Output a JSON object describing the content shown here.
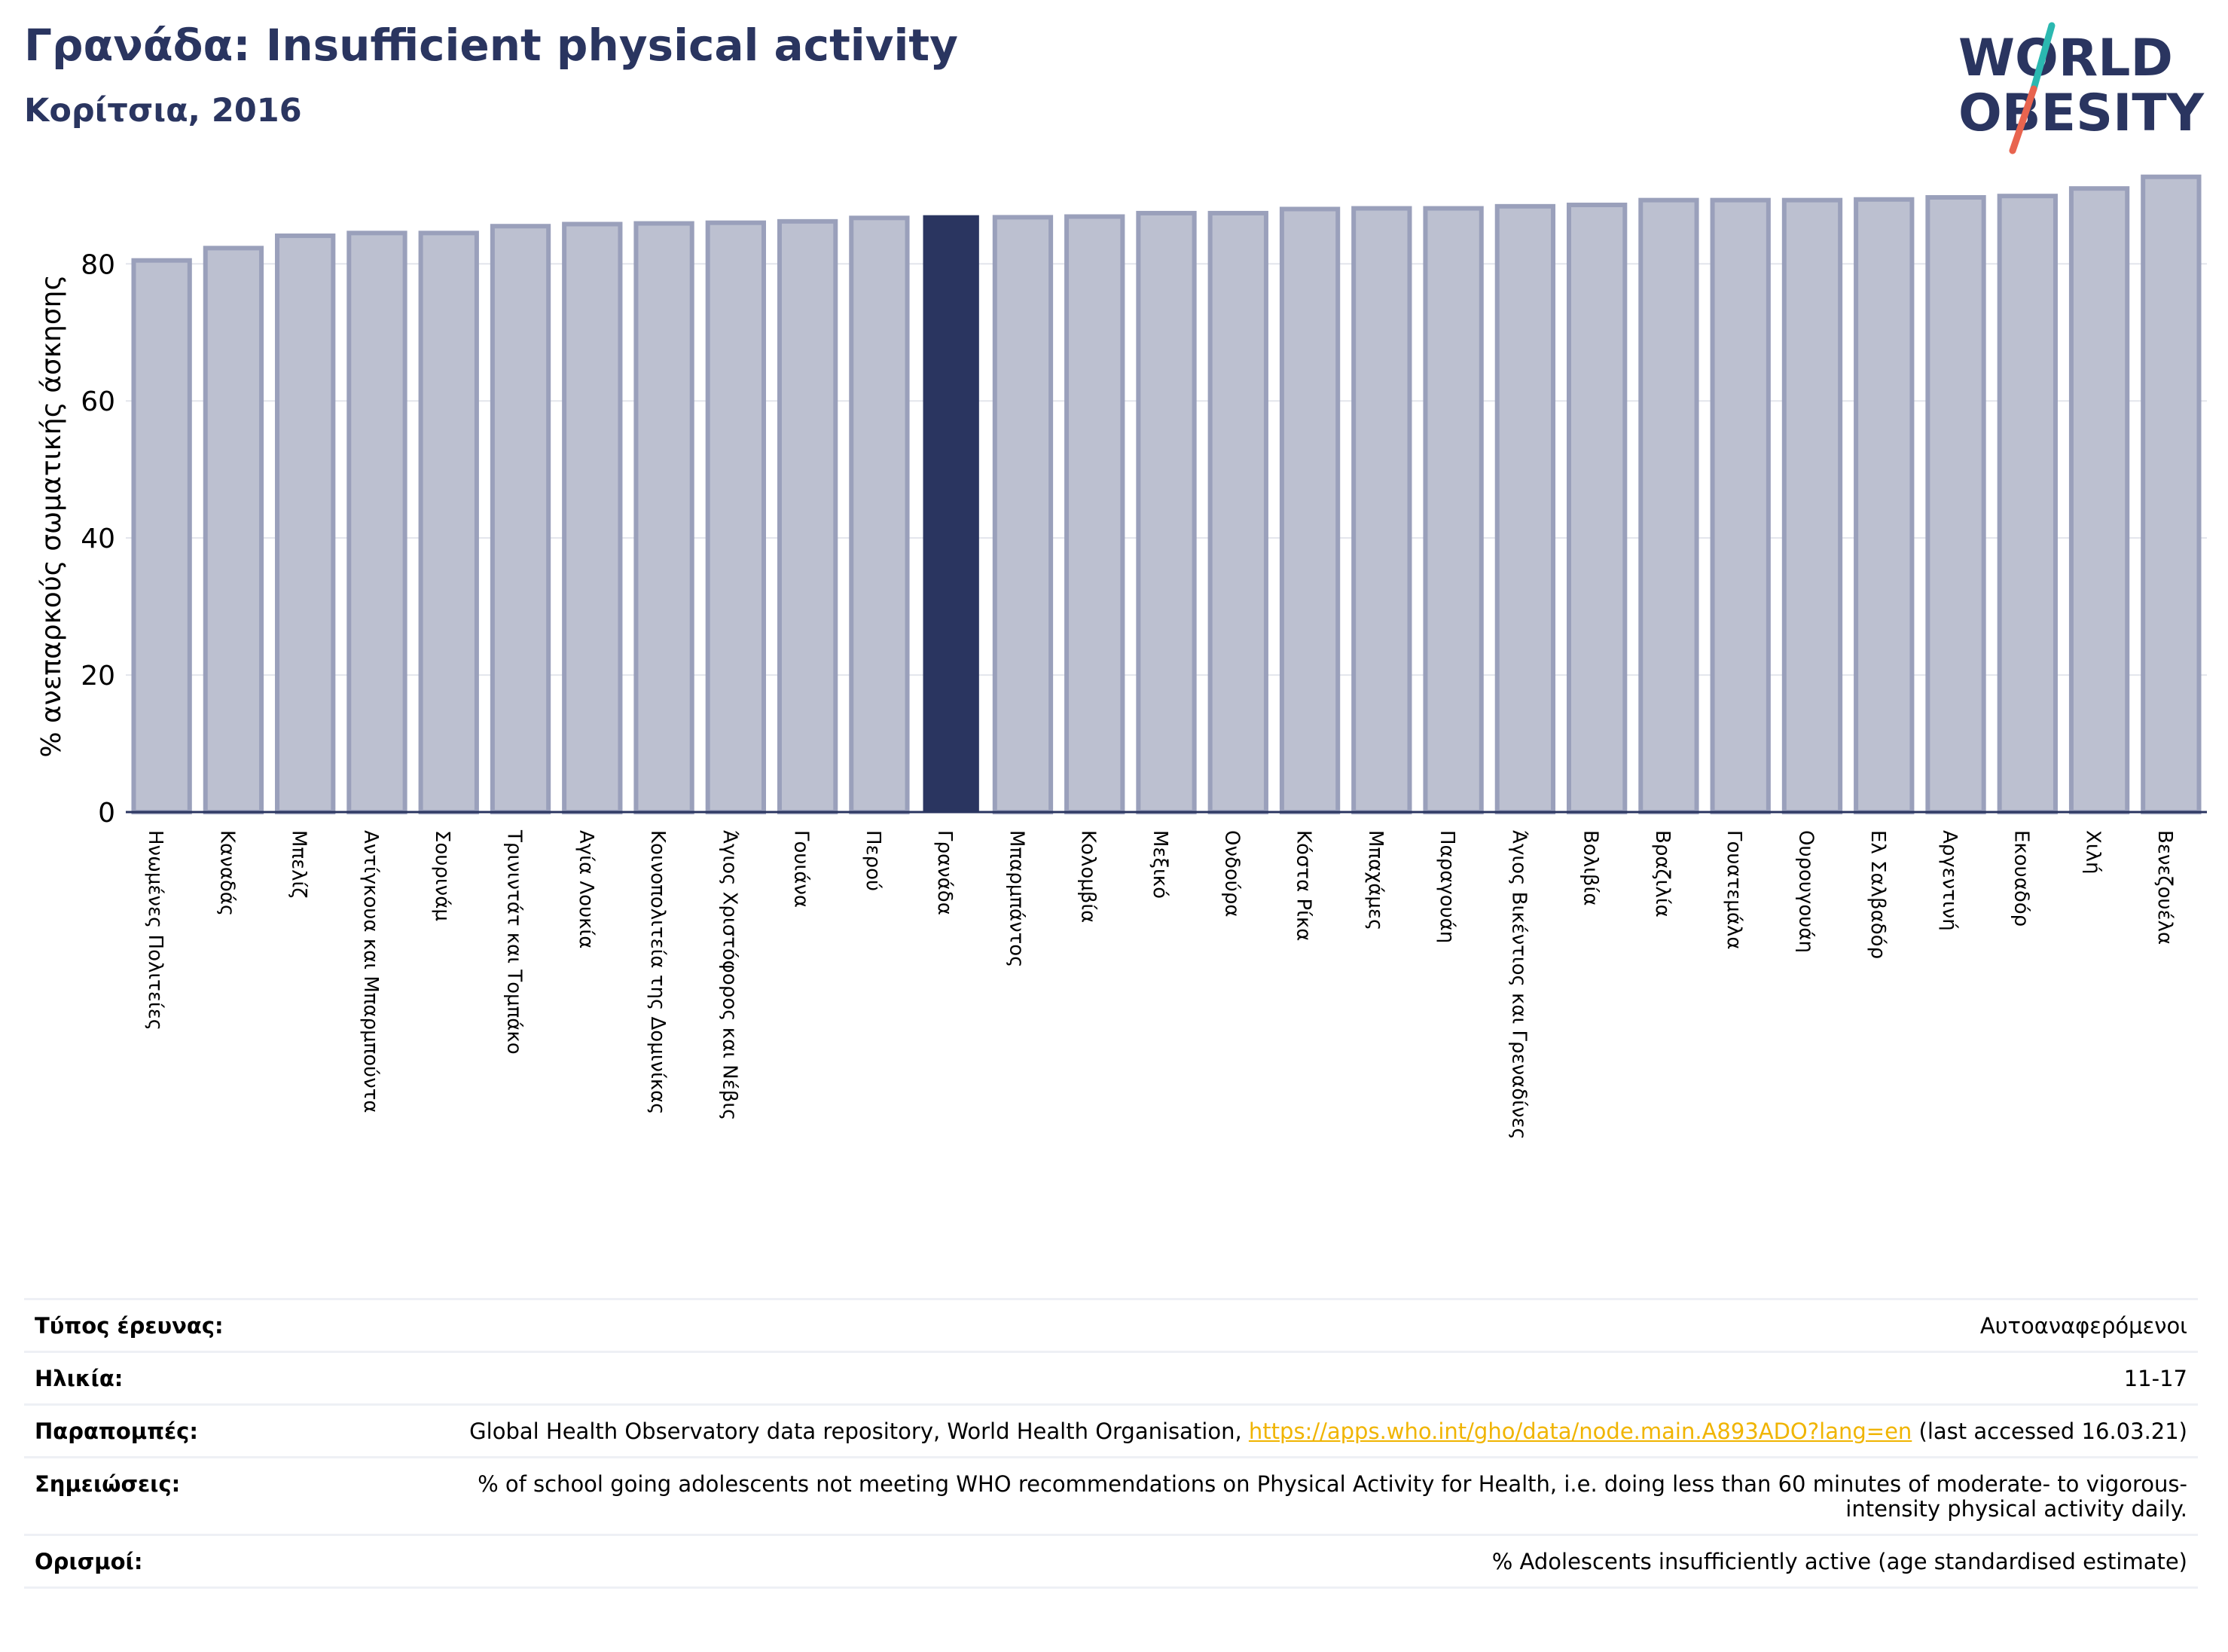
{
  "header": {
    "title": "Γρανάδα: Insufficient physical activity",
    "subtitle": "Κορίτσια, 2016"
  },
  "logo": {
    "line1": "WORLD",
    "line2": "OBESITY",
    "colors": {
      "text": "#2a3560",
      "slash_top": "#2bb8b0",
      "slash_bottom": "#e8644f"
    }
  },
  "colors": {
    "bar_default_fill": "#bcc0d0",
    "bar_default_stroke": "#9aa0bb",
    "bar_highlight": "#2a3560",
    "grid": "#e3e5ec",
    "axis": "#2a3560"
  },
  "chart_data": {
    "type": "bar",
    "ylabel": "% ανεπαρκούς σωματικής άσκησης",
    "ylim": [
      0,
      93
    ],
    "yticks": [
      0,
      20,
      40,
      60,
      80
    ],
    "grid": true,
    "highlight": "Γρανάδα",
    "categories": [
      "Ηνωμένες Πολιτείες",
      "Καναδάς",
      "Μπελίζ",
      "Αντίγκουα και Μπαρμπούντα",
      "Σουρινάμ",
      "Τρινιντάτ και Τομπάκο",
      "Αγία Λουκία",
      "Κοινοπολιτεία της Δομινίκας",
      "Άγιος Χριστόφορος και Νέβις",
      "Γουιάνα",
      "Περού",
      "Γρανάδα",
      "Μπαρμπάντος",
      "Κολομβία",
      "Μεξικό",
      "Ονδούρα",
      "Κόστα Ρίκα",
      "Μπαχάμες",
      "Παραγουάη",
      "Άγιος Βικέντιος και Γρεναδίνες",
      "Βολιβία",
      "Βραζιλία",
      "Γουατεμάλα",
      "Ουρουγουάη",
      "Ελ Σαλβαδόρ",
      "Αργεντινή",
      "Εκουαδόρ",
      "Χιλή",
      "Βενεζουέλα"
    ],
    "values": [
      80.5,
      82.3,
      84.1,
      84.5,
      84.5,
      85.5,
      85.8,
      85.9,
      86.0,
      86.2,
      86.7,
      87.1,
      86.8,
      86.9,
      87.4,
      87.4,
      88.0,
      88.1,
      88.1,
      88.4,
      88.6,
      89.3,
      89.3,
      89.3,
      89.4,
      89.7,
      89.9,
      91.0,
      92.7
    ]
  },
  "meta": [
    {
      "label": "Τύπος έρευνας:",
      "value": "Αυτοαναφερόμενοι"
    },
    {
      "label": "Ηλικία:",
      "value": "11-17"
    },
    {
      "label": "Παραπομπές:",
      "value_prefix": "Global Health Observatory data repository, World Health Organisation, ",
      "link": "https://apps.who.int/gho/data/node.main.A893ADO?lang=en",
      "value_suffix": " (last accessed 16.03.21)"
    },
    {
      "label": "Σημειώσεις:",
      "value": "% of school going adolescents not meeting WHO recommendations on Physical Activity for Health, i.e. doing less than 60 minutes of moderate- to vigorous-intensity physical activity daily."
    },
    {
      "label": "Ορισμοί:",
      "value": "% Adolescents insufficiently active (age standardised estimate)"
    }
  ]
}
